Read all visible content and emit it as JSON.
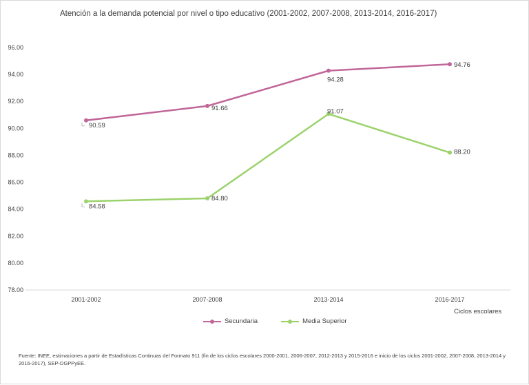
{
  "chart_data": {
    "type": "line",
    "title": "Atención a la demanda potencial por nivel o tipo educativo (2001-2002, 2007-2008, 2013-2014, 2016-2017)",
    "xlabel": "Ciclos escolares",
    "ylabel": "",
    "categories": [
      "2001-2002",
      "2007-2008",
      "2013-2014",
      "2016-2017"
    ],
    "ylim": [
      78,
      96
    ],
    "ytick_step": 2,
    "ytick_labels": [
      "78.00",
      "80.00",
      "82.00",
      "84.00",
      "86.00",
      "88.00",
      "90.00",
      "92.00",
      "94.00",
      "96.00"
    ],
    "grid": false,
    "legend_position": "bottom",
    "series": [
      {
        "name": "Secundaria",
        "color": "#c06699",
        "values": [
          90.59,
          91.66,
          94.28,
          94.76
        ],
        "labels": [
          "90.59",
          "91.66",
          "94.28",
          "94.76"
        ]
      },
      {
        "name": "Media Superior",
        "color": "#9bd26b",
        "values": [
          84.58,
          84.8,
          91.07,
          88.2
        ],
        "labels": [
          "84.58",
          "84.80",
          "91.07",
          "88.20"
        ]
      }
    ]
  },
  "source_note": "Fuente: INEE, estimaciones a partir de Estadísticas Continuas del Formato 911 (fin de los ciclos escolares 2000-2001, 2006-2007, 2012-2013 y 2015-2016 e inicio de los ciclos 2001-2002, 2007-2008, 2013-2014 y 2016-2017), SEP-DGPPyEE."
}
